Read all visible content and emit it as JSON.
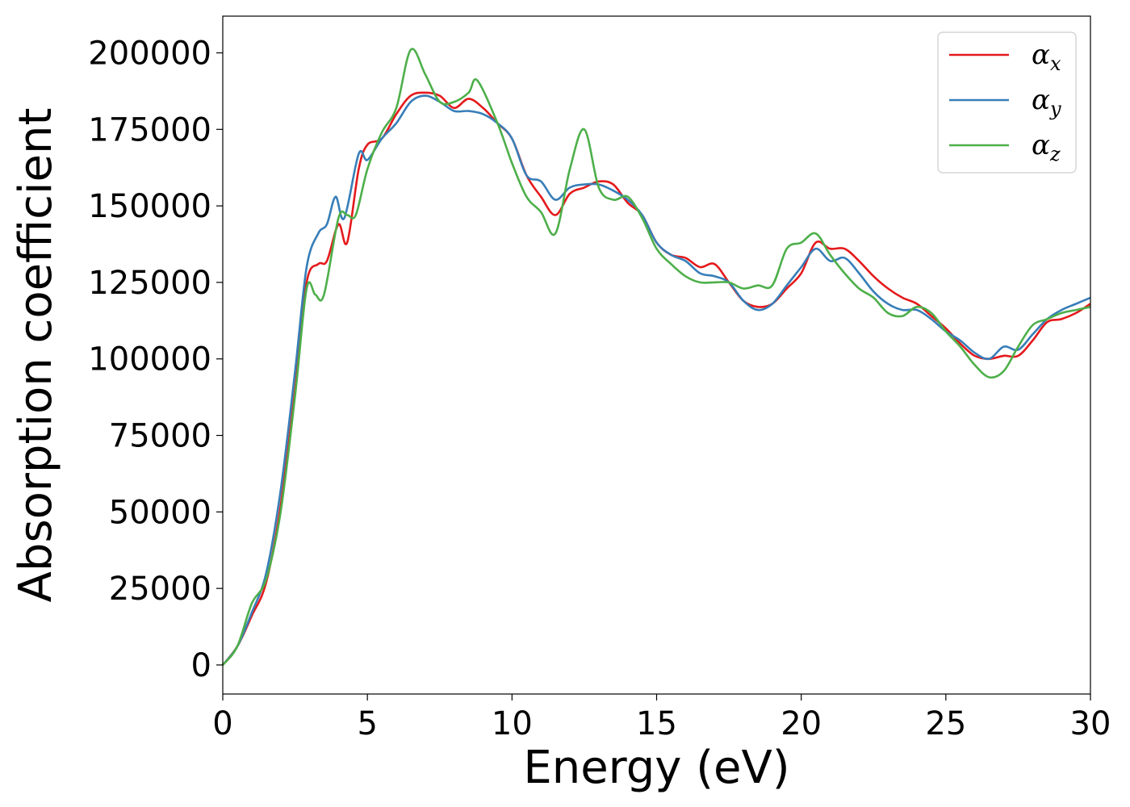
{
  "chart_data": {
    "type": "line",
    "title": "",
    "xlabel": "Energy (eV)",
    "ylabel": "Absorption coefficient",
    "xlim": [
      0,
      30
    ],
    "ylim": [
      -9500,
      212000
    ],
    "xticks": [
      0,
      5,
      10,
      15,
      20,
      25,
      30
    ],
    "xtick_labels": [
      "0",
      "5",
      "10",
      "15",
      "20",
      "25",
      "30"
    ],
    "yticks": [
      0,
      25000,
      50000,
      75000,
      100000,
      125000,
      150000,
      175000,
      200000
    ],
    "ytick_labels": [
      "0",
      "25000",
      "50000",
      "75000",
      "100000",
      "125000",
      "150000",
      "175000",
      "200000"
    ],
    "grid": false,
    "legend_position": "top-right",
    "series": [
      {
        "name": "α",
        "subscript": "x",
        "color": "#e41a1c",
        "points": [
          [
            0,
            0
          ],
          [
            0.5,
            6000
          ],
          [
            1,
            16000
          ],
          [
            1.5,
            27000
          ],
          [
            2,
            52000
          ],
          [
            2.5,
            90000
          ],
          [
            2.9,
            125000
          ],
          [
            3.3,
            131000
          ],
          [
            3.6,
            132000
          ],
          [
            4,
            144000
          ],
          [
            4.3,
            138000
          ],
          [
            4.7,
            162000
          ],
          [
            5,
            170000
          ],
          [
            5.5,
            172000
          ],
          [
            6,
            180000
          ],
          [
            6.5,
            186000
          ],
          [
            7,
            187000
          ],
          [
            7.5,
            186000
          ],
          [
            8,
            182000
          ],
          [
            8.5,
            185000
          ],
          [
            9,
            182000
          ],
          [
            9.5,
            177000
          ],
          [
            10,
            172000
          ],
          [
            10.5,
            160000
          ],
          [
            11,
            153000
          ],
          [
            11.5,
            147000
          ],
          [
            12,
            154000
          ],
          [
            12.5,
            156000
          ],
          [
            13,
            158000
          ],
          [
            13.5,
            157000
          ],
          [
            14,
            151000
          ],
          [
            14.5,
            147000
          ],
          [
            15,
            138000
          ],
          [
            15.5,
            134000
          ],
          [
            16,
            133000
          ],
          [
            16.5,
            130000
          ],
          [
            17,
            131000
          ],
          [
            17.5,
            125000
          ],
          [
            18,
            119000
          ],
          [
            18.5,
            117000
          ],
          [
            19,
            118000
          ],
          [
            19.5,
            123000
          ],
          [
            20,
            128000
          ],
          [
            20.5,
            138000
          ],
          [
            21,
            136000
          ],
          [
            21.5,
            136000
          ],
          [
            22,
            132000
          ],
          [
            22.5,
            127000
          ],
          [
            23,
            123000
          ],
          [
            23.5,
            120000
          ],
          [
            24,
            118000
          ],
          [
            24.5,
            114000
          ],
          [
            25,
            110000
          ],
          [
            25.5,
            105000
          ],
          [
            26,
            101000
          ],
          [
            26.5,
            100000
          ],
          [
            27,
            101000
          ],
          [
            27.5,
            101000
          ],
          [
            28,
            106000
          ],
          [
            28.5,
            112000
          ],
          [
            29,
            113000
          ],
          [
            29.5,
            115000
          ],
          [
            30,
            118000
          ]
        ]
      },
      {
        "name": "α",
        "subscript": "y",
        "color": "#377eb8",
        "points": [
          [
            0,
            0
          ],
          [
            0.5,
            6000
          ],
          [
            1,
            17000
          ],
          [
            1.5,
            30000
          ],
          [
            2,
            57000
          ],
          [
            2.5,
            96000
          ],
          [
            2.9,
            130000
          ],
          [
            3.3,
            141000
          ],
          [
            3.6,
            144000
          ],
          [
            3.9,
            153000
          ],
          [
            4.2,
            146000
          ],
          [
            4.7,
            167000
          ],
          [
            5,
            165000
          ],
          [
            5.5,
            172000
          ],
          [
            6,
            177000
          ],
          [
            6.5,
            184000
          ],
          [
            7,
            186000
          ],
          [
            7.5,
            184000
          ],
          [
            8,
            181000
          ],
          [
            8.5,
            181000
          ],
          [
            9,
            180000
          ],
          [
            9.5,
            177000
          ],
          [
            10,
            172000
          ],
          [
            10.5,
            160000
          ],
          [
            11,
            158000
          ],
          [
            11.5,
            152000
          ],
          [
            12,
            156000
          ],
          [
            12.5,
            157000
          ],
          [
            13,
            157000
          ],
          [
            13.5,
            155000
          ],
          [
            14,
            152000
          ],
          [
            14.5,
            147000
          ],
          [
            15,
            138000
          ],
          [
            15.5,
            134000
          ],
          [
            16,
            132000
          ],
          [
            16.5,
            128000
          ],
          [
            17,
            127000
          ],
          [
            17.5,
            125000
          ],
          [
            18,
            119000
          ],
          [
            18.5,
            116000
          ],
          [
            19,
            118000
          ],
          [
            19.5,
            124000
          ],
          [
            20,
            130000
          ],
          [
            20.5,
            136000
          ],
          [
            21,
            132000
          ],
          [
            21.5,
            133000
          ],
          [
            22,
            128000
          ],
          [
            22.5,
            122000
          ],
          [
            23,
            118000
          ],
          [
            23.5,
            116000
          ],
          [
            24,
            116000
          ],
          [
            24.5,
            113000
          ],
          [
            25,
            109000
          ],
          [
            25.5,
            106000
          ],
          [
            26,
            102000
          ],
          [
            26.5,
            100000
          ],
          [
            27,
            104000
          ],
          [
            27.5,
            103000
          ],
          [
            28,
            108000
          ],
          [
            28.5,
            113000
          ],
          [
            29,
            116000
          ],
          [
            29.5,
            118000
          ],
          [
            30,
            120000
          ]
        ]
      },
      {
        "name": "α",
        "subscript": "z",
        "color": "#4daf4a",
        "points": [
          [
            0,
            0
          ],
          [
            0.5,
            6000
          ],
          [
            1,
            20000
          ],
          [
            1.5,
            28000
          ],
          [
            2,
            50000
          ],
          [
            2.5,
            88000
          ],
          [
            2.9,
            123000
          ],
          [
            3.2,
            121000
          ],
          [
            3.5,
            121000
          ],
          [
            4,
            146000
          ],
          [
            4.3,
            147000
          ],
          [
            4.6,
            147000
          ],
          [
            5,
            162000
          ],
          [
            5.5,
            174000
          ],
          [
            6,
            182000
          ],
          [
            6.5,
            201000
          ],
          [
            7,
            193000
          ],
          [
            7.5,
            184000
          ],
          [
            8,
            184000
          ],
          [
            8.5,
            187000
          ],
          [
            8.8,
            191000
          ],
          [
            9.5,
            177000
          ],
          [
            10,
            164000
          ],
          [
            10.5,
            153000
          ],
          [
            11,
            148000
          ],
          [
            11.5,
            141000
          ],
          [
            12,
            162000
          ],
          [
            12.5,
            175000
          ],
          [
            13,
            156000
          ],
          [
            13.5,
            152000
          ],
          [
            14,
            153000
          ],
          [
            14.5,
            146000
          ],
          [
            15,
            136000
          ],
          [
            15.5,
            131000
          ],
          [
            16,
            127000
          ],
          [
            16.5,
            125000
          ],
          [
            17,
            125000
          ],
          [
            17.5,
            125000
          ],
          [
            18,
            123000
          ],
          [
            18.5,
            124000
          ],
          [
            19,
            124000
          ],
          [
            19.5,
            136000
          ],
          [
            20,
            138000
          ],
          [
            20.5,
            141000
          ],
          [
            21,
            134000
          ],
          [
            21.5,
            128000
          ],
          [
            22,
            123000
          ],
          [
            22.5,
            120000
          ],
          [
            23,
            115000
          ],
          [
            23.5,
            114000
          ],
          [
            24,
            117000
          ],
          [
            24.5,
            115000
          ],
          [
            25,
            109000
          ],
          [
            25.5,
            104000
          ],
          [
            26,
            98000
          ],
          [
            26.5,
            94000
          ],
          [
            27,
            96000
          ],
          [
            27.5,
            104000
          ],
          [
            28,
            111000
          ],
          [
            28.5,
            113000
          ],
          [
            29,
            115000
          ],
          [
            29.5,
            116000
          ],
          [
            30,
            117000
          ]
        ]
      }
    ]
  }
}
